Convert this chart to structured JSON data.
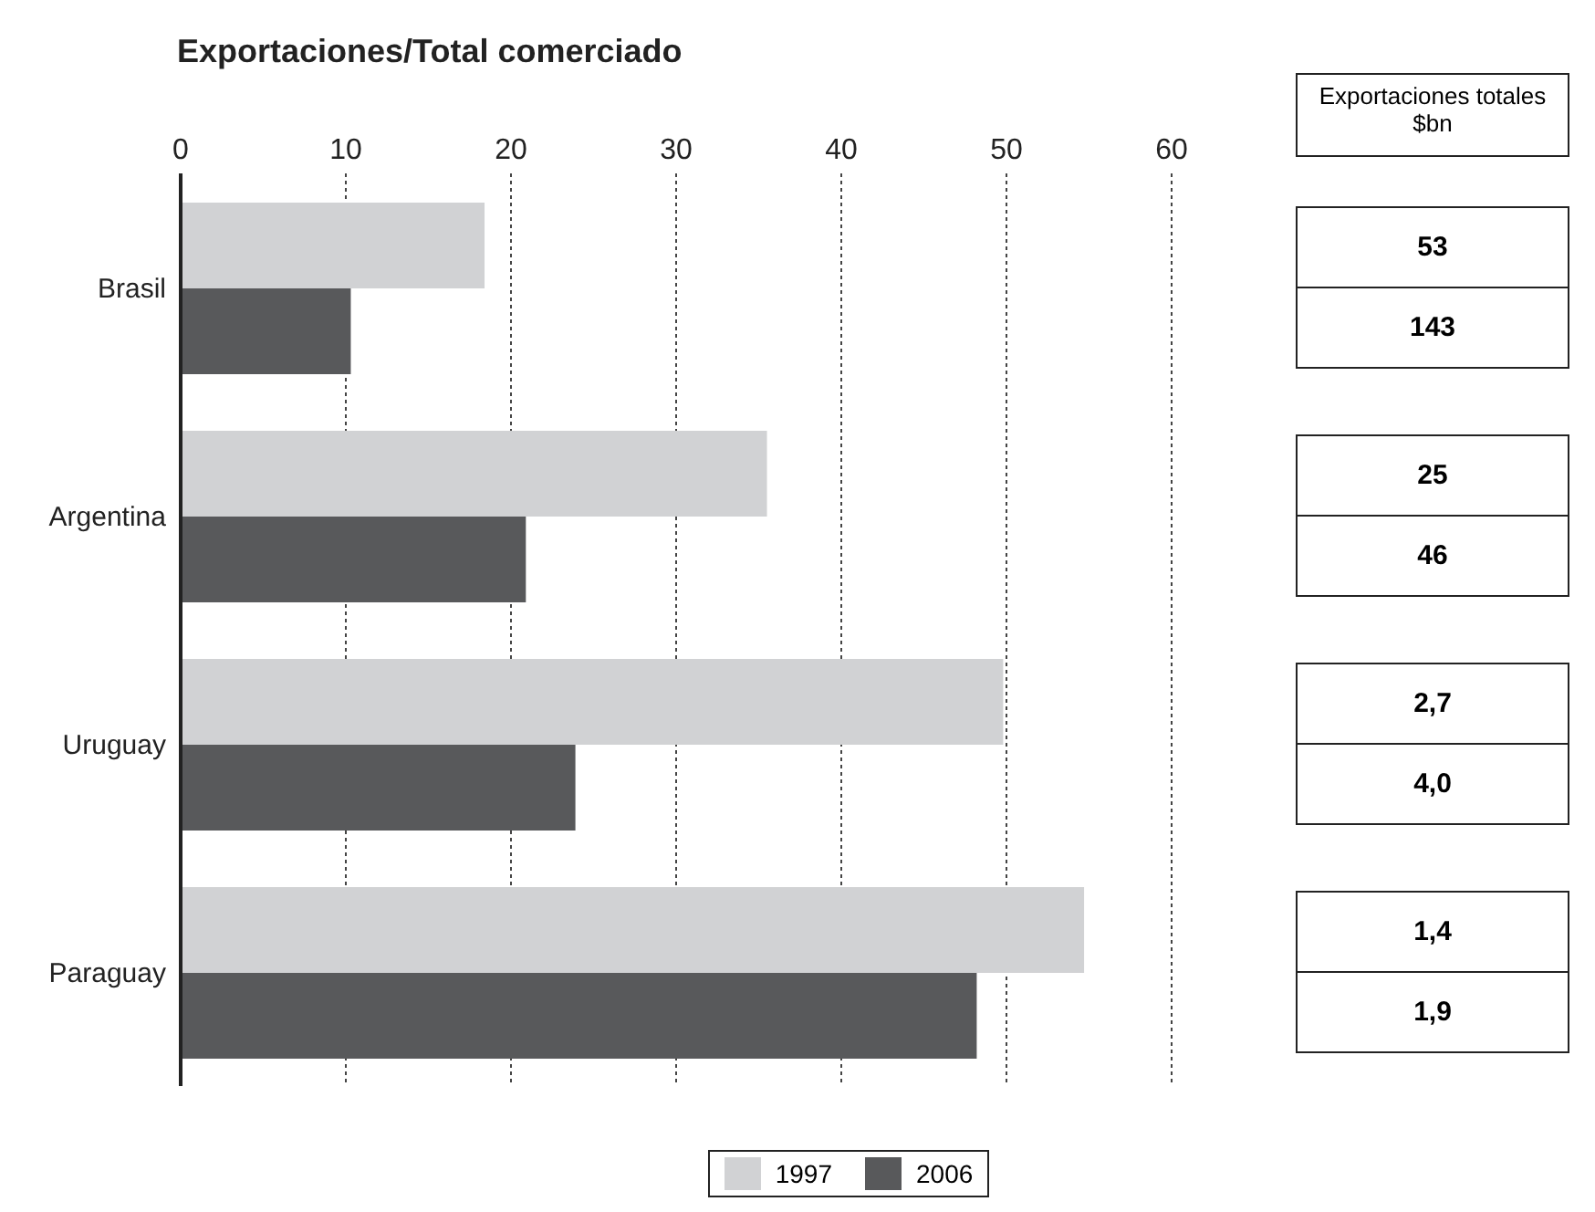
{
  "chart_data": {
    "type": "bar",
    "orientation": "horizontal",
    "title": "Exportaciones/Total comerciado",
    "categories": [
      "Brasil",
      "Argentina",
      "Uruguay",
      "Paraguay"
    ],
    "series": [
      {
        "name": "1997",
        "color": "#d1d2d4",
        "values": [
          18.4,
          35.5,
          49.8,
          54.7
        ]
      },
      {
        "name": "2006",
        "color": "#58595b",
        "values": [
          10.3,
          20.9,
          23.9,
          48.2
        ]
      }
    ],
    "xlim": [
      0,
      60
    ],
    "xticks": [
      0,
      10,
      20,
      30,
      40,
      50,
      60
    ],
    "grid": "x",
    "legend": "bottom",
    "annotations": [
      "Exportaciones totales $bn",
      "53",
      "143",
      "25",
      "46",
      "2,7",
      "4,0",
      "1,4",
      "1,9"
    ]
  }
}
